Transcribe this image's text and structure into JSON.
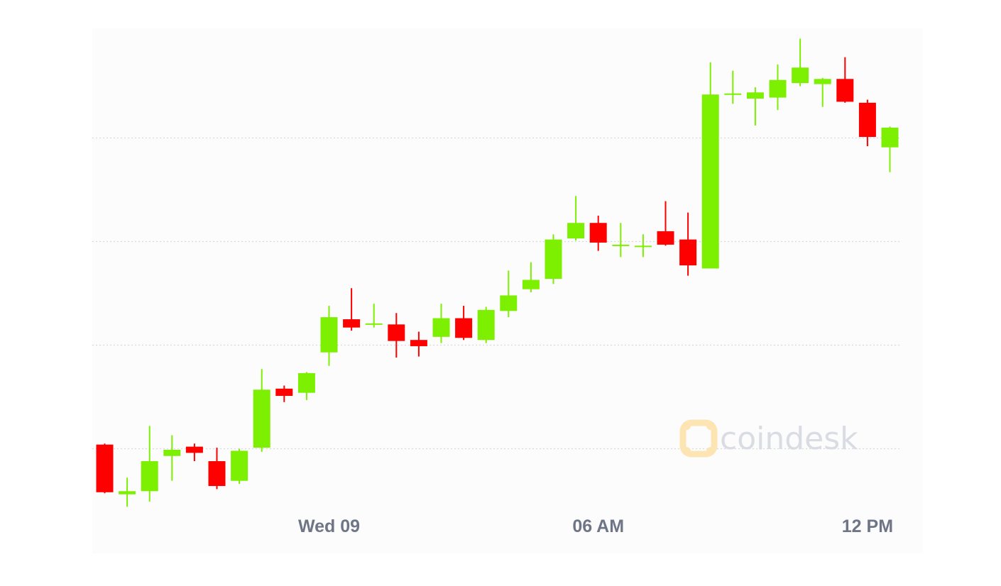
{
  "colors": {
    "up": "#7cf000",
    "down": "#ff0000",
    "grid": "#d5d8de",
    "tick_text": "#6e7586",
    "watermark_text": "#d9dce2",
    "watermark_logo": "#fde5b3"
  },
  "watermark": {
    "text": "coindesk"
  },
  "chart_data": {
    "type": "candlestick",
    "title": "",
    "xlabel": "",
    "ylabel": "",
    "x_tick_labels": [
      "Wed 09",
      "06 AM",
      "12 PM"
    ],
    "x_tick_candle_index": [
      10,
      22,
      34
    ],
    "y_grid_values": [
      1,
      2,
      3,
      4
    ],
    "y_tick_labels_shown": false,
    "ylim": [
      0.55,
      4.9
    ],
    "grid": true,
    "candles": [
      {
        "o": 1.04,
        "h": 1.05,
        "l": 0.57,
        "c": 0.58
      },
      {
        "o": 0.56,
        "h": 0.72,
        "l": 0.44,
        "c": 0.59
      },
      {
        "o": 0.59,
        "h": 1.22,
        "l": 0.49,
        "c": 0.88
      },
      {
        "o": 0.93,
        "h": 1.13,
        "l": 0.69,
        "c": 0.99
      },
      {
        "o": 1.02,
        "h": 1.05,
        "l": 0.88,
        "c": 0.96
      },
      {
        "o": 0.88,
        "h": 1.01,
        "l": 0.61,
        "c": 0.64
      },
      {
        "o": 0.69,
        "h": 1.0,
        "l": 0.66,
        "c": 0.98
      },
      {
        "o": 1.01,
        "h": 1.77,
        "l": 0.97,
        "c": 1.57
      },
      {
        "o": 1.58,
        "h": 1.61,
        "l": 1.45,
        "c": 1.51
      },
      {
        "o": 1.54,
        "h": 1.74,
        "l": 1.47,
        "c": 1.73
      },
      {
        "o": 1.93,
        "h": 2.38,
        "l": 1.8,
        "c": 2.27
      },
      {
        "o": 2.25,
        "h": 2.55,
        "l": 2.14,
        "c": 2.17
      },
      {
        "o": 2.2,
        "h": 2.4,
        "l": 2.17,
        "c": 2.21
      },
      {
        "o": 2.2,
        "h": 2.31,
        "l": 1.88,
        "c": 2.04
      },
      {
        "o": 2.05,
        "h": 2.13,
        "l": 1.89,
        "c": 1.99
      },
      {
        "o": 2.08,
        "h": 2.4,
        "l": 2.02,
        "c": 2.26
      },
      {
        "o": 2.26,
        "h": 2.38,
        "l": 2.05,
        "c": 2.07
      },
      {
        "o": 2.05,
        "h": 2.37,
        "l": 2.02,
        "c": 2.34
      },
      {
        "o": 2.33,
        "h": 2.72,
        "l": 2.27,
        "c": 2.48
      },
      {
        "o": 2.54,
        "h": 2.8,
        "l": 2.51,
        "c": 2.63
      },
      {
        "o": 2.64,
        "h": 3.07,
        "l": 2.59,
        "c": 3.02
      },
      {
        "o": 3.03,
        "h": 3.44,
        "l": 3.01,
        "c": 3.18
      },
      {
        "o": 3.18,
        "h": 3.25,
        "l": 2.91,
        "c": 2.99
      },
      {
        "o": 2.96,
        "h": 3.18,
        "l": 2.85,
        "c": 2.97
      },
      {
        "o": 2.95,
        "h": 3.07,
        "l": 2.85,
        "c": 2.96
      },
      {
        "o": 3.1,
        "h": 3.39,
        "l": 2.96,
        "c": 2.97
      },
      {
        "o": 3.02,
        "h": 3.28,
        "l": 2.67,
        "c": 2.77
      },
      {
        "o": 2.74,
        "h": 4.73,
        "l": 2.74,
        "c": 4.42
      },
      {
        "o": 4.43,
        "h": 4.65,
        "l": 4.33,
        "c": 4.43
      },
      {
        "o": 4.38,
        "h": 4.49,
        "l": 4.12,
        "c": 4.44
      },
      {
        "o": 4.39,
        "h": 4.71,
        "l": 4.27,
        "c": 4.56
      },
      {
        "o": 4.53,
        "h": 4.96,
        "l": 4.5,
        "c": 4.68
      },
      {
        "o": 4.52,
        "h": 4.58,
        "l": 4.3,
        "c": 4.57
      },
      {
        "o": 4.57,
        "h": 4.78,
        "l": 4.34,
        "c": 4.35
      },
      {
        "o": 4.34,
        "h": 4.37,
        "l": 3.92,
        "c": 4.01
      },
      {
        "o": 3.91,
        "h": 4.11,
        "l": 3.67,
        "c": 4.1
      }
    ]
  }
}
